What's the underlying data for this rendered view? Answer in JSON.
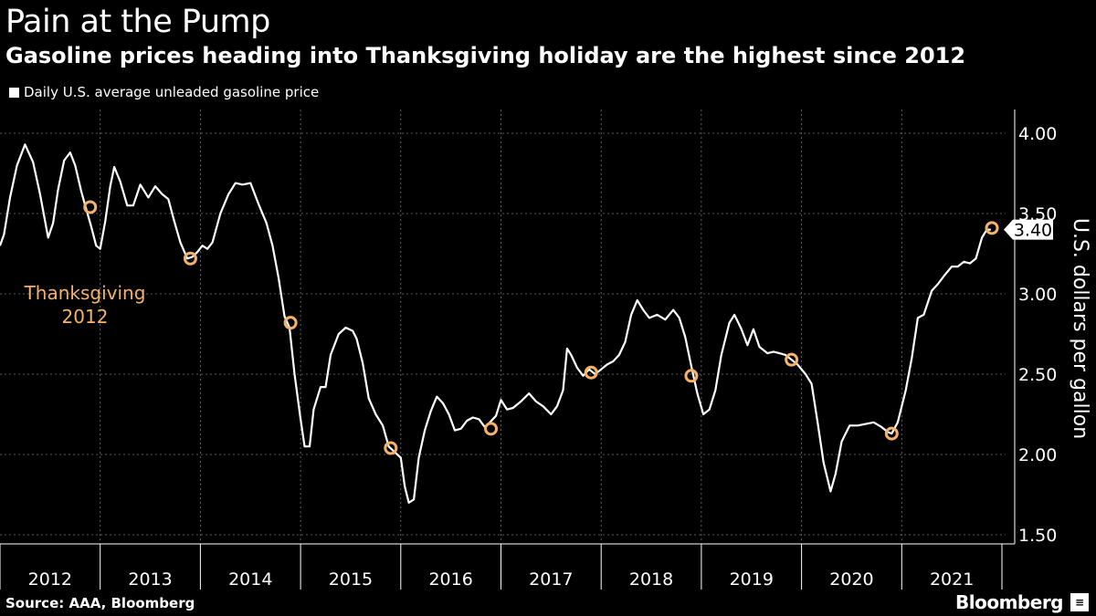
{
  "chart_data": {
    "type": "line",
    "title": "Pain at the Pump",
    "subtitle": "Gasoline prices heading into Thanksgiving holiday are the highest since 2012",
    "series": [
      {
        "name": "Daily U.S. average unleaded gasoline price",
        "color": "#ffffff",
        "points": [
          [
            2012.0,
            3.3
          ],
          [
            2012.04,
            3.37
          ],
          [
            2012.1,
            3.6
          ],
          [
            2012.17,
            3.8
          ],
          [
            2012.25,
            3.93
          ],
          [
            2012.33,
            3.82
          ],
          [
            2012.4,
            3.62
          ],
          [
            2012.48,
            3.35
          ],
          [
            2012.53,
            3.44
          ],
          [
            2012.58,
            3.65
          ],
          [
            2012.64,
            3.83
          ],
          [
            2012.7,
            3.88
          ],
          [
            2012.75,
            3.8
          ],
          [
            2012.81,
            3.64
          ],
          [
            2012.86,
            3.53
          ],
          [
            2012.91,
            3.42
          ],
          [
            2012.96,
            3.3
          ],
          [
            2013.0,
            3.28
          ],
          [
            2013.05,
            3.45
          ],
          [
            2013.1,
            3.67
          ],
          [
            2013.14,
            3.79
          ],
          [
            2013.2,
            3.7
          ],
          [
            2013.27,
            3.55
          ],
          [
            2013.33,
            3.55
          ],
          [
            2013.4,
            3.68
          ],
          [
            2013.48,
            3.6
          ],
          [
            2013.55,
            3.67
          ],
          [
            2013.62,
            3.62
          ],
          [
            2013.68,
            3.59
          ],
          [
            2013.74,
            3.45
          ],
          [
            2013.8,
            3.32
          ],
          [
            2013.87,
            3.22
          ],
          [
            2013.92,
            3.23
          ],
          [
            2013.97,
            3.26
          ],
          [
            2014.02,
            3.3
          ],
          [
            2014.07,
            3.28
          ],
          [
            2014.12,
            3.32
          ],
          [
            2014.2,
            3.5
          ],
          [
            2014.28,
            3.62
          ],
          [
            2014.35,
            3.69
          ],
          [
            2014.42,
            3.68
          ],
          [
            2014.5,
            3.69
          ],
          [
            2014.58,
            3.56
          ],
          [
            2014.66,
            3.44
          ],
          [
            2014.72,
            3.3
          ],
          [
            2014.78,
            3.1
          ],
          [
            2014.84,
            2.86
          ],
          [
            2014.89,
            2.79
          ],
          [
            2014.94,
            2.5
          ],
          [
            2015.0,
            2.22
          ],
          [
            2015.04,
            2.05
          ],
          [
            2015.09,
            2.05
          ],
          [
            2015.13,
            2.28
          ],
          [
            2015.2,
            2.42
          ],
          [
            2015.25,
            2.42
          ],
          [
            2015.3,
            2.62
          ],
          [
            2015.38,
            2.75
          ],
          [
            2015.45,
            2.79
          ],
          [
            2015.52,
            2.77
          ],
          [
            2015.56,
            2.72
          ],
          [
            2015.62,
            2.57
          ],
          [
            2015.68,
            2.35
          ],
          [
            2015.75,
            2.25
          ],
          [
            2015.82,
            2.18
          ],
          [
            2015.88,
            2.05
          ],
          [
            2015.93,
            2.02
          ],
          [
            2016.0,
            1.98
          ],
          [
            2016.04,
            1.8
          ],
          [
            2016.08,
            1.7
          ],
          [
            2016.13,
            1.72
          ],
          [
            2016.18,
            1.98
          ],
          [
            2016.24,
            2.15
          ],
          [
            2016.3,
            2.27
          ],
          [
            2016.36,
            2.36
          ],
          [
            2016.42,
            2.32
          ],
          [
            2016.48,
            2.25
          ],
          [
            2016.54,
            2.15
          ],
          [
            2016.6,
            2.16
          ],
          [
            2016.66,
            2.21
          ],
          [
            2016.72,
            2.23
          ],
          [
            2016.78,
            2.22
          ],
          [
            2016.84,
            2.17
          ],
          [
            2016.89,
            2.2
          ],
          [
            2016.95,
            2.24
          ],
          [
            2017.0,
            2.34
          ],
          [
            2017.06,
            2.28
          ],
          [
            2017.12,
            2.29
          ],
          [
            2017.2,
            2.33
          ],
          [
            2017.28,
            2.38
          ],
          [
            2017.35,
            2.33
          ],
          [
            2017.42,
            2.3
          ],
          [
            2017.5,
            2.25
          ],
          [
            2017.56,
            2.3
          ],
          [
            2017.62,
            2.4
          ],
          [
            2017.66,
            2.66
          ],
          [
            2017.7,
            2.62
          ],
          [
            2017.76,
            2.54
          ],
          [
            2017.82,
            2.49
          ],
          [
            2017.88,
            2.53
          ],
          [
            2017.94,
            2.5
          ],
          [
            2018.0,
            2.53
          ],
          [
            2018.06,
            2.56
          ],
          [
            2018.12,
            2.58
          ],
          [
            2018.18,
            2.62
          ],
          [
            2018.24,
            2.7
          ],
          [
            2018.3,
            2.87
          ],
          [
            2018.36,
            2.96
          ],
          [
            2018.42,
            2.9
          ],
          [
            2018.48,
            2.85
          ],
          [
            2018.56,
            2.87
          ],
          [
            2018.64,
            2.84
          ],
          [
            2018.72,
            2.9
          ],
          [
            2018.78,
            2.85
          ],
          [
            2018.84,
            2.73
          ],
          [
            2018.9,
            2.55
          ],
          [
            2018.96,
            2.38
          ],
          [
            2019.02,
            2.25
          ],
          [
            2019.08,
            2.28
          ],
          [
            2019.14,
            2.4
          ],
          [
            2019.2,
            2.62
          ],
          [
            2019.28,
            2.82
          ],
          [
            2019.33,
            2.87
          ],
          [
            2019.4,
            2.78
          ],
          [
            2019.46,
            2.68
          ],
          [
            2019.52,
            2.78
          ],
          [
            2019.58,
            2.67
          ],
          [
            2019.66,
            2.63
          ],
          [
            2019.72,
            2.64
          ],
          [
            2019.78,
            2.63
          ],
          [
            2019.84,
            2.62
          ],
          [
            2019.9,
            2.59
          ],
          [
            2019.96,
            2.56
          ],
          [
            2020.04,
            2.5
          ],
          [
            2020.1,
            2.44
          ],
          [
            2020.16,
            2.2
          ],
          [
            2020.22,
            1.95
          ],
          [
            2020.29,
            1.77
          ],
          [
            2020.34,
            1.88
          ],
          [
            2020.4,
            2.08
          ],
          [
            2020.48,
            2.18
          ],
          [
            2020.56,
            2.18
          ],
          [
            2020.64,
            2.19
          ],
          [
            2020.72,
            2.2
          ],
          [
            2020.8,
            2.17
          ],
          [
            2020.86,
            2.14
          ],
          [
            2020.9,
            2.13
          ],
          [
            2020.96,
            2.2
          ],
          [
            2021.04,
            2.4
          ],
          [
            2021.1,
            2.6
          ],
          [
            2021.16,
            2.85
          ],
          [
            2021.22,
            2.87
          ],
          [
            2021.3,
            3.02
          ],
          [
            2021.36,
            3.06
          ],
          [
            2021.42,
            3.11
          ],
          [
            2021.5,
            3.17
          ],
          [
            2021.56,
            3.17
          ],
          [
            2021.62,
            3.2
          ],
          [
            2021.68,
            3.19
          ],
          [
            2021.74,
            3.22
          ],
          [
            2021.8,
            3.35
          ],
          [
            2021.85,
            3.4
          ],
          [
            2021.89,
            3.4
          ]
        ]
      }
    ],
    "thanksgiving_markers": [
      {
        "year": 2012,
        "x": 2012.9,
        "y": 3.54
      },
      {
        "year": 2013,
        "x": 2013.9,
        "y": 3.22
      },
      {
        "year": 2014,
        "x": 2014.9,
        "y": 2.82
      },
      {
        "year": 2015,
        "x": 2015.9,
        "y": 2.04
      },
      {
        "year": 2016,
        "x": 2016.9,
        "y": 2.16
      },
      {
        "year": 2017,
        "x": 2017.9,
        "y": 2.51
      },
      {
        "year": 2018,
        "x": 2018.9,
        "y": 2.49
      },
      {
        "year": 2019,
        "x": 2019.9,
        "y": 2.59
      },
      {
        "year": 2020,
        "x": 2020.9,
        "y": 2.13
      },
      {
        "year": 2021,
        "x": 2021.9,
        "y": 3.41
      }
    ],
    "marker_color": "#f6b26b",
    "annotation": {
      "text_line1": "Thanksgiving",
      "text_line2": "2012",
      "color": "#f6b26b"
    },
    "last_value_label": "3.40",
    "x_ticks": [
      "2012",
      "2013",
      "2014",
      "2015",
      "2016",
      "2017",
      "2018",
      "2019",
      "2020",
      "2021"
    ],
    "xlim": [
      2012,
      2022
    ],
    "y_ticks": [
      "1.50",
      "2.00",
      "2.50",
      "3.00",
      "3.50",
      "4.00"
    ],
    "ylim": [
      1.5,
      4.0
    ],
    "ylabel": "U.S. dollars per gallon",
    "ylabel_position": "right",
    "grid": true,
    "legend_position": "top-left"
  },
  "footer": {
    "source": "Source: AAA, Bloomberg",
    "brand": "Bloomberg"
  }
}
